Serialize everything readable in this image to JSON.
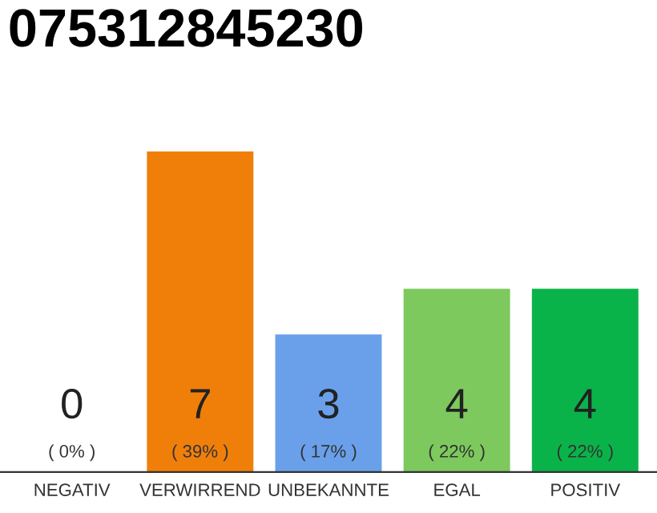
{
  "chart_data": {
    "type": "bar",
    "title": "075312845230",
    "categories": [
      "NEGATIV",
      "VERWIRREND",
      "UNBEKANNTE",
      "EGAL",
      "POSITIV"
    ],
    "values": [
      0,
      7,
      3,
      4,
      4
    ],
    "colors": [
      "#9e9e9e",
      "#f07f0a",
      "#6aa0ea",
      "#7dc95e",
      "#0ab34a"
    ],
    "value_labels": [
      "0\n( 0% )",
      "7\n( 39% )",
      "3\n( 17% )",
      "4\n( 22% )",
      "4\n( 22% )"
    ],
    "grid": false,
    "legend": false
  }
}
